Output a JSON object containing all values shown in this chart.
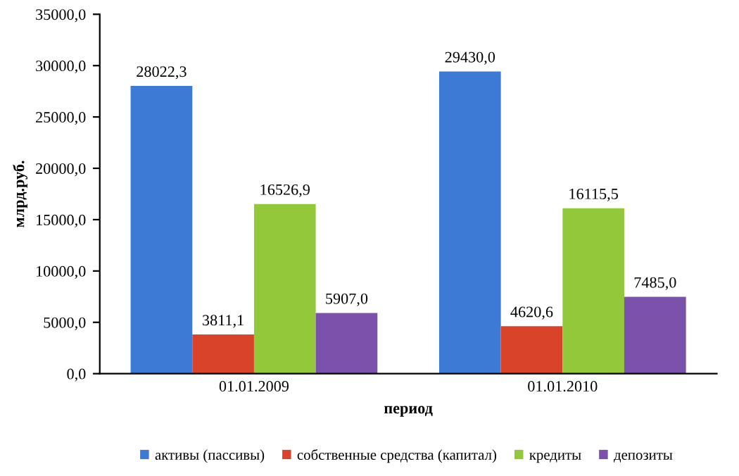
{
  "chart_data": {
    "type": "bar",
    "xlabel": "период",
    "ylabel": "млрд.руб.",
    "categories": [
      "01.01.2009",
      "01.01.2010"
    ],
    "series": [
      {
        "name": "активы (пассивы)",
        "color": "#3d7ad6",
        "values": [
          28022.3,
          29430.0
        ],
        "value_labels": [
          "28022,3",
          "29430,0"
        ]
      },
      {
        "name": "собственные средства (капитал)",
        "color": "#d9432a",
        "values": [
          3811.1,
          4620.6
        ],
        "value_labels": [
          "3811,1",
          "4620,6"
        ]
      },
      {
        "name": "кредиты",
        "color": "#93c83a",
        "values": [
          16526.9,
          16115.5
        ],
        "value_labels": [
          "16526,9",
          "16115,5"
        ]
      },
      {
        "name": "депозиты",
        "color": "#7b52ab",
        "values": [
          5907.0,
          7485.0
        ],
        "value_labels": [
          "5907,0",
          "7485,0"
        ]
      }
    ],
    "ylim": [
      0,
      35000
    ],
    "yticks": [
      {
        "value": 0,
        "label": "0,0"
      },
      {
        "value": 5000,
        "label": "5000,0"
      },
      {
        "value": 10000,
        "label": "10000,0"
      },
      {
        "value": 15000,
        "label": "15000,0"
      },
      {
        "value": 20000,
        "label": "20000,0"
      },
      {
        "value": 25000,
        "label": "25000,0"
      },
      {
        "value": 30000,
        "label": "30000,0"
      },
      {
        "value": 35000,
        "label": "35000,0"
      }
    ],
    "grid": false,
    "legend": "bottom"
  }
}
